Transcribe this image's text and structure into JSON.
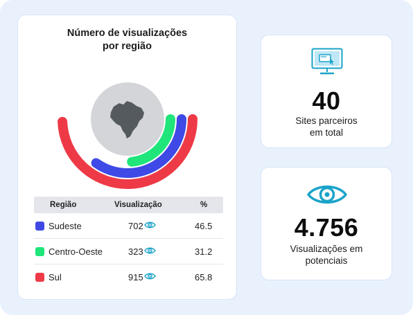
{
  "chart_title_line1": "Número de visualizações",
  "chart_title_line2": "por região",
  "colors": {
    "blue": "#3f49e6",
    "green": "#1fe57a",
    "red": "#ee3a46",
    "accent": "#1aa3c8"
  },
  "chart_data": {
    "type": "radial-bar",
    "title": "Número de visualizações por região",
    "categories": [
      "Sudeste",
      "Centro-Oeste",
      "Sul"
    ],
    "values": [
      46.5,
      31.2,
      65.8
    ],
    "views": [
      702,
      323,
      915
    ]
  },
  "table": {
    "headers": {
      "region": "Região",
      "views": "Visualização",
      "pct": "%"
    },
    "rows": [
      {
        "name": "Sudeste",
        "value": "702",
        "pct": "46.5",
        "color": "#3f49e6"
      },
      {
        "name": "Centro-Oeste",
        "value": "323",
        "pct": "31.2",
        "color": "#1fe57a"
      },
      {
        "name": "Sul",
        "value": "915",
        "pct": "65.8",
        "color": "#ee3a46"
      }
    ]
  },
  "sites": {
    "number": "40",
    "caption_line1": "Sites parceiros",
    "caption_line2": "em total",
    "icon": "computer-monitor-icon"
  },
  "views": {
    "number": "4.756",
    "caption_line1": "Visualizações em",
    "caption_line2": "potenciais",
    "icon": "eye-icon"
  }
}
